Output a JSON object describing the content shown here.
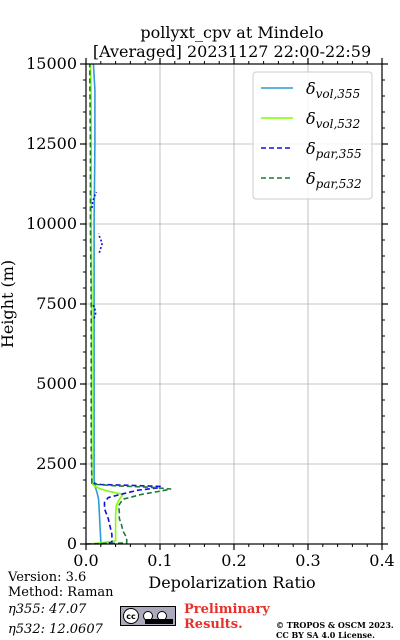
{
  "chart_data": {
    "type": "line",
    "title": [
      "pollyxt_cpv at Mindelo",
      "[Averaged] 20231127 22:00-22:59"
    ],
    "xlabel": "Depolarization Ratio",
    "ylabel": "Height (m)",
    "xlim": [
      0,
      0.4
    ],
    "ylim": [
      0,
      15000
    ],
    "xticks": [
      "0.0",
      "0.1",
      "0.2",
      "0.3",
      "0.4"
    ],
    "xtick_values": [
      0,
      0.1,
      0.2,
      0.3,
      0.4
    ],
    "yticks": [
      "0",
      "2500",
      "5000",
      "7500",
      "10000",
      "12500",
      "15000"
    ],
    "ytick_values": [
      0,
      2500,
      5000,
      7500,
      10000,
      12500,
      15000
    ],
    "grid": true,
    "legend_position": "top-right",
    "series": [
      {
        "name": "vol,355",
        "color": "#2e9bd6",
        "dash": "solid",
        "points": [
          [
            0.02,
            0
          ],
          [
            0.02,
            100
          ],
          [
            0.019,
            500
          ],
          [
            0.018,
            1000
          ],
          [
            0.017,
            1400
          ],
          [
            0.015,
            1600
          ],
          [
            0.013,
            1750
          ],
          [
            0.012,
            1850
          ],
          [
            0.011,
            2000
          ],
          [
            0.011,
            3000
          ],
          [
            0.011,
            5000
          ],
          [
            0.011,
            7500
          ],
          [
            0.011,
            10000
          ],
          [
            0.012,
            12500
          ],
          [
            0.012,
            13500
          ],
          [
            0.012,
            14200
          ],
          [
            0.01,
            15000
          ]
        ]
      },
      {
        "name": "vol,532",
        "color": "#7fff00",
        "dash": "solid",
        "points": [
          [
            0.0,
            0
          ],
          [
            0.02,
            30
          ],
          [
            0.04,
            100
          ],
          [
            0.04,
            400
          ],
          [
            0.04,
            900
          ],
          [
            0.041,
            1200
          ],
          [
            0.045,
            1400
          ],
          [
            0.05,
            1550
          ],
          [
            0.03,
            1650
          ],
          [
            0.02,
            1720
          ],
          [
            0.012,
            1800
          ],
          [
            0.008,
            1900
          ],
          [
            0.008,
            3000
          ],
          [
            0.008,
            5000
          ],
          [
            0.008,
            7500
          ],
          [
            0.007,
            10000
          ],
          [
            0.007,
            12500
          ],
          [
            0.007,
            14000
          ],
          [
            0.006,
            15000
          ]
        ]
      },
      {
        "name": "par,355",
        "color": "#1010d8",
        "dash": "dashed",
        "points": [
          [
            0.02,
            0
          ],
          [
            0.035,
            50
          ],
          [
            0.035,
            300
          ],
          [
            0.03,
            800
          ],
          [
            0.025,
            1100
          ],
          [
            0.025,
            1300
          ],
          [
            0.03,
            1450
          ],
          [
            0.05,
            1570
          ],
          [
            0.07,
            1680
          ],
          [
            0.1,
            1760
          ],
          [
            0.1,
            1800
          ],
          [
            0.06,
            1830
          ],
          [
            0.02,
            1860
          ],
          [
            0.01,
            1900
          ]
        ],
        "extra_segments": [
          [
            [
              0.011,
              7050
            ],
            [
              0.013,
              7200
            ],
            [
              0.012,
              7350
            ],
            [
              0.009,
              7500
            ]
          ],
          [
            [
              0.018,
              9100
            ],
            [
              0.02,
              9250
            ],
            [
              0.022,
              9400
            ],
            [
              0.019,
              9550
            ],
            [
              0.017,
              9700
            ]
          ],
          [
            [
              0.008,
              10500
            ],
            [
              0.009,
              10700
            ],
            [
              0.012,
              10900
            ],
            [
              0.014,
              11000
            ]
          ]
        ]
      },
      {
        "name": "par,532",
        "color": "#1a7a3a",
        "dash": "dashed",
        "points": [
          [
            0.0,
            0
          ],
          [
            0.055,
            30
          ],
          [
            0.055,
            200
          ],
          [
            0.05,
            400
          ],
          [
            0.048,
            600
          ],
          [
            0.045,
            800
          ],
          [
            0.045,
            1000
          ],
          [
            0.044,
            1200
          ],
          [
            0.05,
            1400
          ],
          [
            0.075,
            1550
          ],
          [
            0.1,
            1650
          ],
          [
            0.115,
            1720
          ],
          [
            0.09,
            1770
          ],
          [
            0.04,
            1820
          ],
          [
            0.015,
            1860
          ],
          [
            0.008,
            1900
          ],
          [
            0.007,
            3000
          ],
          [
            0.007,
            5000
          ],
          [
            0.007,
            7500
          ],
          [
            0.006,
            10000
          ],
          [
            0.006,
            12500
          ],
          [
            0.005,
            15000
          ]
        ]
      }
    ]
  },
  "legend": [
    {
      "label_main": "δ",
      "label_sub": "vol,355"
    },
    {
      "label_main": "δ",
      "label_sub": "vol,532"
    },
    {
      "label_main": "δ",
      "label_sub": "par,355"
    },
    {
      "label_main": "δ",
      "label_sub": "par,532"
    }
  ],
  "footer": {
    "version": "Version: 3.6",
    "method": "Method: Raman",
    "eta355": "η355:  47.07",
    "eta532": "η532: 12.0607",
    "preliminary_line1": "Preliminary",
    "preliminary_line2": "Results.",
    "copyright_line1": "© TROPOS & OSCM 2023.",
    "copyright_line2": "CC BY SA 4.0 License."
  }
}
